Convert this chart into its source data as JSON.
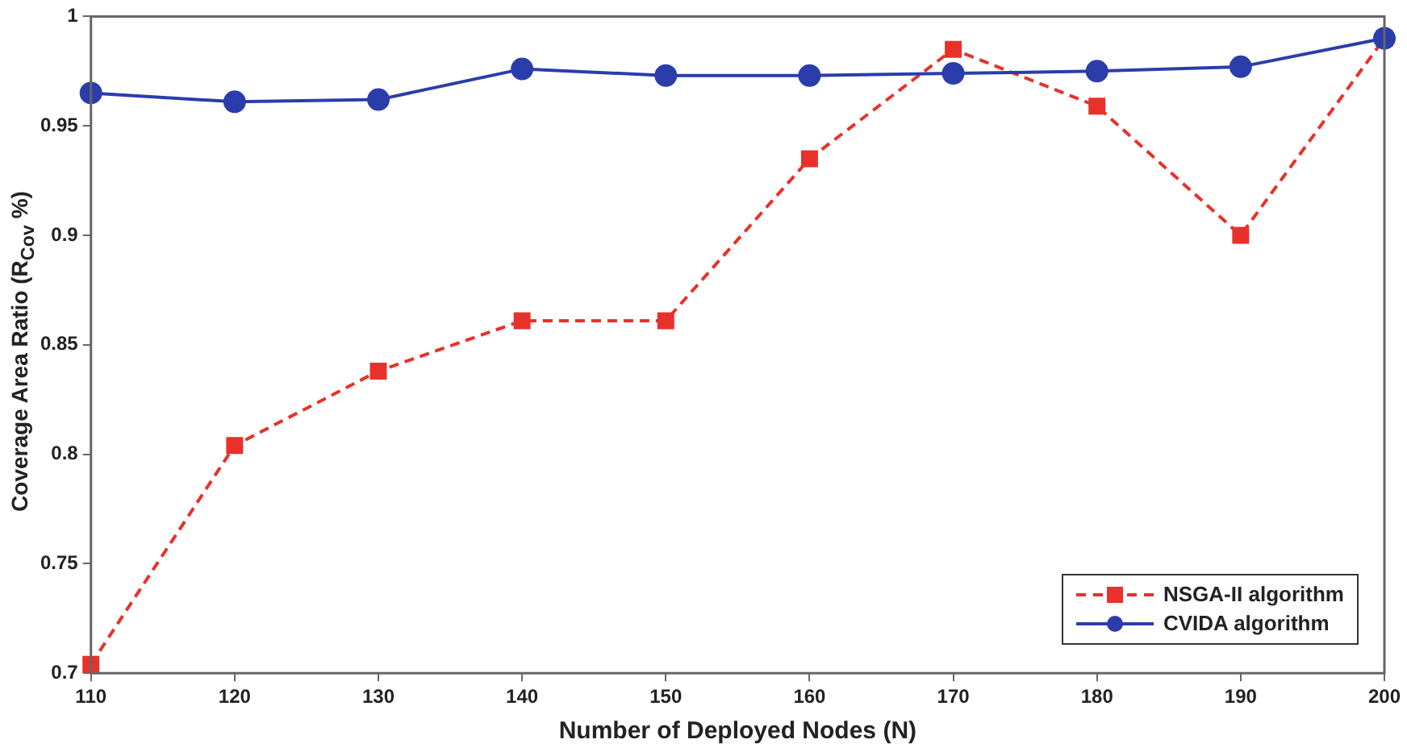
{
  "chart_data": {
    "type": "line",
    "xlabel": "Number of Deployed Nodes (N)",
    "ylabel": "Coverage Area Ratio (R$_{Cov}$ %)",
    "x": [
      110,
      120,
      130,
      140,
      150,
      160,
      170,
      180,
      190,
      200
    ],
    "series": [
      {
        "name": "NSGA-II algorithm",
        "color": "#e8312a",
        "marker": "square",
        "line_style": "dashed",
        "values": [
          0.704,
          0.804,
          0.838,
          0.861,
          0.861,
          0.935,
          0.985,
          0.959,
          0.9,
          0.99
        ]
      },
      {
        "name": "CVIDA algorithm",
        "color": "#2b3dab",
        "marker": "circle",
        "line_style": "solid",
        "values": [
          0.965,
          0.961,
          0.962,
          0.976,
          0.973,
          0.973,
          0.974,
          0.975,
          0.977,
          0.99
        ]
      }
    ],
    "xlim": [
      110,
      200
    ],
    "xticks": [
      110,
      120,
      130,
      140,
      150,
      160,
      170,
      180,
      190,
      200
    ],
    "ylim": [
      0.7,
      1
    ],
    "yticks": [
      0.7,
      0.75,
      0.8,
      0.85,
      0.9,
      0.95,
      1
    ],
    "grid": false,
    "legend": "bottom right"
  }
}
